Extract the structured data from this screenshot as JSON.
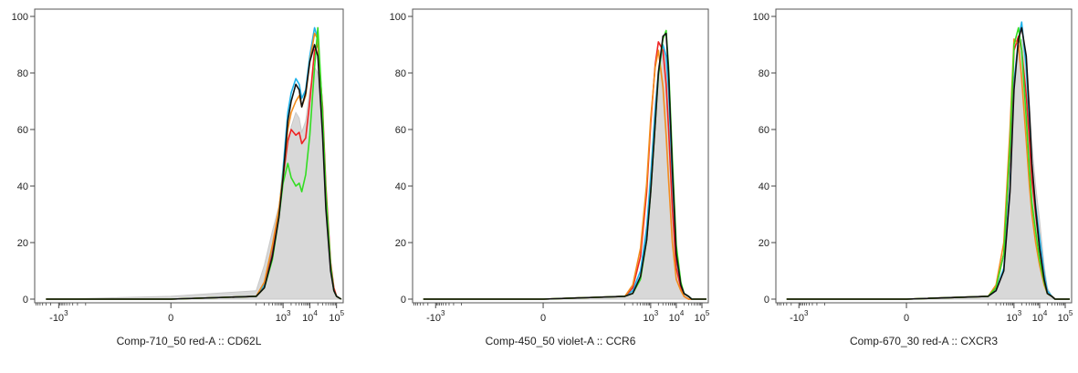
{
  "chart_data": [
    {
      "type": "line",
      "xlabel": "Comp-710_50 red-A :: CD62L",
      "ylabel": "",
      "x_scale": "biexponential",
      "ylim": [
        0,
        100
      ],
      "y_ticks": [
        "0",
        "20",
        "40",
        "60",
        "80",
        "100"
      ],
      "x_ticks": [
        {
          "base": "-10",
          "exp": "3",
          "value": -1000
        },
        {
          "base": "0",
          "exp": "",
          "value": 0
        },
        {
          "base": "10",
          "exp": "3",
          "value": 1000
        },
        {
          "base": "10",
          "exp": "4",
          "value": 10000
        },
        {
          "base": "10",
          "exp": "5",
          "value": 100000
        }
      ],
      "x": [
        -3000,
        -1000,
        0,
        100,
        200,
        400,
        700,
        1000,
        1500,
        2000,
        3000,
        4000,
        5000,
        7000,
        10000,
        15000,
        20000,
        30000,
        40000,
        60000,
        80000,
        100000,
        150000
      ],
      "series": [
        {
          "color": "#c8c8c8",
          "filled": true,
          "values": [
            0,
            0,
            1,
            3,
            12,
            24,
            33,
            41,
            54,
            61,
            66,
            64,
            59,
            63,
            74,
            82,
            80,
            57,
            34,
            12,
            4,
            1,
            0
          ]
        },
        {
          "color": "#1fb2ea",
          "values": [
            0,
            0,
            0,
            1,
            5,
            18,
            31,
            46,
            66,
            73,
            78,
            76,
            71,
            74,
            86,
            96,
            92,
            63,
            36,
            11,
            3,
            1,
            0
          ]
        },
        {
          "color": "#ee2222",
          "values": [
            0,
            0,
            0,
            1,
            4,
            16,
            30,
            43,
            56,
            60,
            58,
            59,
            55,
            57,
            70,
            88,
            90,
            68,
            40,
            13,
            4,
            1,
            0
          ]
        },
        {
          "color": "#f28c1c",
          "values": [
            0,
            0,
            0,
            1,
            6,
            19,
            32,
            44,
            60,
            66,
            70,
            72,
            68,
            72,
            84,
            94,
            92,
            60,
            36,
            11,
            3,
            1,
            0
          ]
        },
        {
          "color": "#33dd22",
          "values": [
            0,
            0,
            0,
            1,
            4,
            14,
            29,
            41,
            48,
            43,
            40,
            41,
            38,
            44,
            58,
            82,
            96,
            66,
            38,
            12,
            3,
            1,
            0
          ]
        },
        {
          "color": "#111111",
          "values": [
            0,
            0,
            0,
            1,
            4,
            15,
            29,
            43,
            63,
            70,
            76,
            74,
            68,
            73,
            84,
            90,
            86,
            58,
            32,
            10,
            3,
            1,
            0
          ]
        }
      ]
    },
    {
      "type": "line",
      "xlabel": "Comp-450_50 violet-A :: CCR6",
      "ylabel": "",
      "x_scale": "biexponential",
      "ylim": [
        0,
        100
      ],
      "y_ticks": [
        "0",
        "20",
        "40",
        "60",
        "80",
        "100"
      ],
      "x_ticks": [
        {
          "base": "-10",
          "exp": "3",
          "value": -1000
        },
        {
          "base": "0",
          "exp": "",
          "value": 0
        },
        {
          "base": "10",
          "exp": "3",
          "value": 1000
        },
        {
          "base": "10",
          "exp": "4",
          "value": 10000
        },
        {
          "base": "10",
          "exp": "5",
          "value": 100000
        }
      ],
      "x": [
        -3000,
        -1000,
        0,
        100,
        200,
        400,
        700,
        1000,
        1500,
        2000,
        3000,
        4000,
        5000,
        7000,
        10000,
        15000,
        20000,
        30000,
        40000,
        60000,
        80000,
        100000,
        150000
      ],
      "series": [
        {
          "color": "#c8c8c8",
          "filled": true,
          "values": [
            0,
            0,
            0,
            1,
            3,
            10,
            27,
            46,
            70,
            82,
            90,
            84,
            72,
            44,
            18,
            6,
            2,
            1,
            0,
            0,
            0,
            0,
            0
          ]
        },
        {
          "color": "#1fb2ea",
          "values": [
            0,
            0,
            0,
            1,
            3,
            10,
            25,
            43,
            67,
            80,
            90,
            86,
            74,
            43,
            15,
            5,
            2,
            1,
            0,
            0,
            0,
            0,
            0
          ]
        },
        {
          "color": "#ee2222",
          "values": [
            0,
            0,
            0,
            1,
            4,
            15,
            38,
            62,
            83,
            91,
            88,
            76,
            60,
            32,
            11,
            4,
            1,
            0,
            0,
            0,
            0,
            0,
            0
          ]
        },
        {
          "color": "#f28c1c",
          "values": [
            0,
            0,
            0,
            1,
            5,
            18,
            41,
            64,
            82,
            88,
            75,
            58,
            42,
            20,
            7,
            3,
            1,
            0,
            0,
            0,
            0,
            0,
            0
          ]
        },
        {
          "color": "#33dd22",
          "values": [
            0,
            0,
            0,
            1,
            2,
            7,
            21,
            38,
            62,
            79,
            92,
            95,
            82,
            50,
            19,
            6,
            2,
            1,
            0,
            0,
            0,
            0,
            0
          ]
        },
        {
          "color": "#111111",
          "values": [
            0,
            0,
            0,
            1,
            2,
            8,
            21,
            38,
            62,
            80,
            93,
            94,
            80,
            46,
            16,
            5,
            2,
            1,
            0,
            0,
            0,
            0,
            0
          ]
        }
      ]
    },
    {
      "type": "line",
      "xlabel": "Comp-670_30 red-A :: CXCR3",
      "ylabel": "",
      "x_scale": "biexponential",
      "ylim": [
        0,
        100
      ],
      "y_ticks": [
        "0",
        "20",
        "40",
        "60",
        "80",
        "100"
      ],
      "x_ticks": [
        {
          "base": "-10",
          "exp": "3",
          "value": -1000
        },
        {
          "base": "0",
          "exp": "",
          "value": 0
        },
        {
          "base": "10",
          "exp": "3",
          "value": 1000
        },
        {
          "base": "10",
          "exp": "4",
          "value": 10000
        },
        {
          "base": "10",
          "exp": "5",
          "value": 100000
        }
      ],
      "x": [
        -3000,
        -1000,
        0,
        100,
        200,
        400,
        700,
        1000,
        1500,
        2000,
        3000,
        4000,
        5000,
        7000,
        10000,
        15000,
        20000,
        30000,
        40000,
        60000,
        80000,
        100000,
        150000
      ],
      "series": [
        {
          "color": "#c8c8c8",
          "filled": true,
          "values": [
            0,
            0,
            0,
            1,
            3,
            11,
            42,
            78,
            88,
            92,
            84,
            68,
            55,
            40,
            28,
            12,
            4,
            1,
            0,
            0,
            0,
            0,
            0
          ]
        },
        {
          "color": "#1fb2ea",
          "values": [
            0,
            0,
            0,
            1,
            3,
            11,
            40,
            77,
            92,
            98,
            82,
            62,
            46,
            33,
            22,
            9,
            3,
            1,
            0,
            0,
            0,
            0,
            0
          ]
        },
        {
          "color": "#ee2222",
          "values": [
            0,
            0,
            0,
            1,
            4,
            16,
            52,
            88,
            93,
            88,
            72,
            56,
            42,
            30,
            18,
            7,
            2,
            1,
            0,
            0,
            0,
            0,
            0
          ]
        },
        {
          "color": "#f28c1c",
          "values": [
            0,
            0,
            0,
            1,
            5,
            20,
            60,
            92,
            90,
            78,
            56,
            40,
            30,
            20,
            12,
            5,
            2,
            1,
            0,
            0,
            0,
            0,
            0
          ]
        },
        {
          "color": "#33dd22",
          "values": [
            0,
            0,
            0,
            1,
            4,
            16,
            54,
            90,
            96,
            88,
            64,
            46,
            34,
            24,
            14,
            6,
            2,
            1,
            0,
            0,
            0,
            0,
            0
          ]
        },
        {
          "color": "#111111",
          "values": [
            0,
            0,
            0,
            1,
            3,
            10,
            38,
            74,
            92,
            96,
            86,
            66,
            48,
            32,
            18,
            7,
            2,
            1,
            0,
            0,
            0,
            0,
            0
          ]
        }
      ]
    }
  ]
}
